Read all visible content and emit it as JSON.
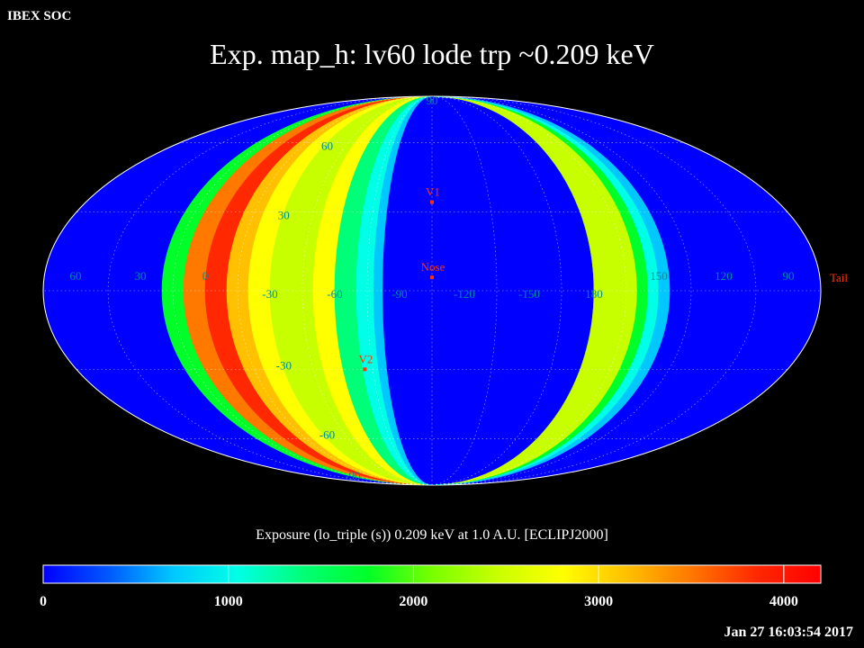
{
  "header": {
    "corner_label": "IBEX SOC"
  },
  "title": "Exp.   map_h: lv60 lode trp ~0.209 keV",
  "subtitle": "Exposure (lo_triple (s))  0.209 keV at 1.0 A.U. [ECLIPJ2000]",
  "timestamp": "Jan 27 16:03:54 2017",
  "colorbar": {
    "range": [
      0,
      4200
    ],
    "ticks": [
      "0",
      "1000",
      "2000",
      "3000",
      "4000"
    ],
    "tick_values": [
      0,
      1000,
      2000,
      3000,
      4000
    ],
    "palette": [
      "#0000ff",
      "#0057ff",
      "#00c8ff",
      "#00ffe6",
      "#00ff78",
      "#00ff28",
      "#78ff00",
      "#c8ff00",
      "#ffff00",
      "#ffc000",
      "#ff7800",
      "#ff2800",
      "#ff0000"
    ]
  },
  "map": {
    "projection": "Mollweide",
    "background_color": "#0000ff",
    "label_color": "#008a9a",
    "marker_color": "#ff3300",
    "lon_labels": [
      "60",
      "30",
      "0",
      "-30",
      "-60",
      "-90",
      "-120",
      "-150",
      "180",
      "150",
      "120",
      "90"
    ],
    "lon_label_values": [
      60,
      30,
      0,
      -30,
      -60,
      -90,
      -120,
      -150,
      180,
      150,
      120,
      90
    ],
    "lat_labels": [
      "90",
      "60",
      "30",
      "-30",
      "-60",
      "-90"
    ],
    "lat_label_values": [
      90,
      60,
      30,
      -30,
      -60,
      -90
    ],
    "markers": [
      {
        "label": "V1",
        "lon": -105,
        "lat": 34
      },
      {
        "label": "Nose",
        "lon": -105,
        "lat": 5
      },
      {
        "label": "V2",
        "lon": -71,
        "lat": -30
      },
      {
        "label": "Tail",
        "lon": 75,
        "lat": -5
      }
    ],
    "exposure_bands": [
      {
        "lon_from": 20,
        "lon_to": 10,
        "value": 1650
      },
      {
        "lon_from": 10,
        "lon_to": 0,
        "value": 3500
      },
      {
        "lon_from": 0,
        "lon_to": -10,
        "value": 4000
      },
      {
        "lon_from": -10,
        "lon_to": -20,
        "value": 3200
      },
      {
        "lon_from": -20,
        "lon_to": -30,
        "value": 2950
      },
      {
        "lon_from": -30,
        "lon_to": -40,
        "value": 2400
      },
      {
        "lon_from": -40,
        "lon_to": -50,
        "value": 2600
      },
      {
        "lon_from": -50,
        "lon_to": -60,
        "value": 2750
      },
      {
        "lon_from": -60,
        "lon_to": -70,
        "value": 1300
      },
      {
        "lon_from": -70,
        "lon_to": -78,
        "value": 1000
      },
      {
        "lon_from": -78,
        "lon_to": -82,
        "value": 600
      },
      {
        "lon_from": 165,
        "lon_to": 170,
        "value": 1300
      },
      {
        "lon_from": 170,
        "lon_to": 175,
        "value": 1800
      },
      {
        "lon_from": 175,
        "lon_to": 180,
        "value": 2250
      },
      {
        "lon_from": 180,
        "lon_to": 170,
        "value": 2600
      },
      {
        "lon_from": 170,
        "lon_to": 160,
        "value": 2300
      },
      {
        "lon_from": 160,
        "lon_to": 155,
        "value": 1650
      },
      {
        "lon_from": 155,
        "lon_to": 150,
        "value": 1150
      },
      {
        "lon_from": 150,
        "lon_to": 145,
        "value": 550
      }
    ]
  }
}
